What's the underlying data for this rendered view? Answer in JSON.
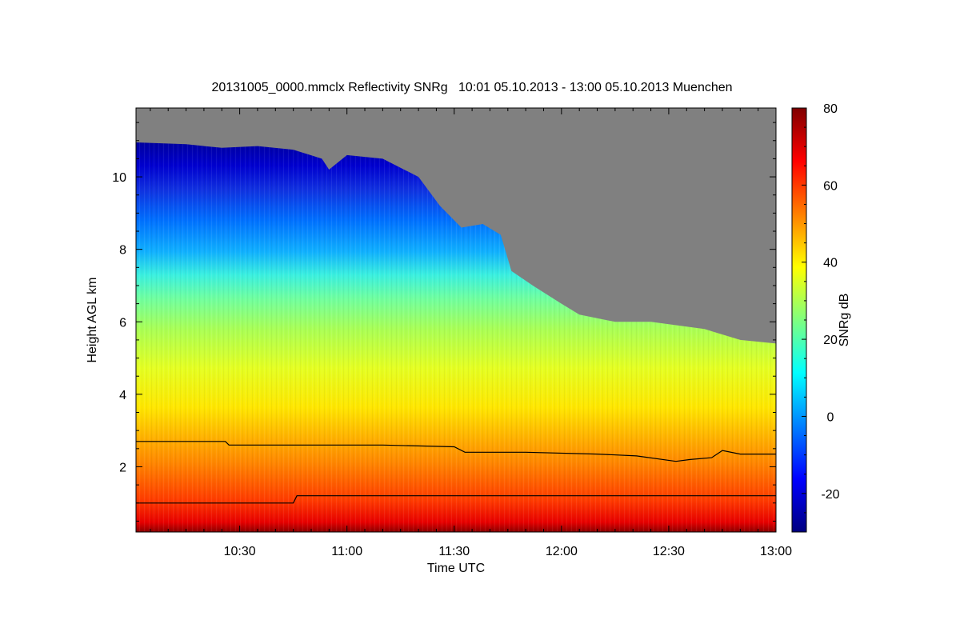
{
  "chart_data": {
    "type": "heatmap",
    "title": "20131005_0000.mmclx Reflectivity SNRg   10:01 05.10.2013 - 13:00 05.10.2013 Muenchen",
    "xlabel": "Time UTC",
    "ylabel": "Height AGL km",
    "colorbar_label": "SNRg dB",
    "x_range": [
      "10:01",
      "13:00"
    ],
    "x_range_minutes": [
      601,
      780
    ],
    "x_ticks": [
      {
        "label": "10:30",
        "minutes": 630
      },
      {
        "label": "11:00",
        "minutes": 660
      },
      {
        "label": "11:30",
        "minutes": 690
      },
      {
        "label": "12:00",
        "minutes": 720
      },
      {
        "label": "12:30",
        "minutes": 750
      },
      {
        "label": "13:00",
        "minutes": 780
      }
    ],
    "y_range": [
      0.2,
      11.9
    ],
    "y_ticks": [
      2,
      4,
      6,
      8,
      10
    ],
    "colorbar_range": [
      -30,
      80
    ],
    "colorbar_ticks": [
      -20,
      0,
      20,
      40,
      60,
      80
    ],
    "colormap": [
      "#00007f",
      "#0000ff",
      "#007fff",
      "#00ffff",
      "#7fff7f",
      "#ffff00",
      "#ff7f00",
      "#ff0000",
      "#7f0000"
    ],
    "no_signal_color": "#808080",
    "echo_top_km": [
      {
        "t": 601,
        "h": 10.95
      },
      {
        "t": 615,
        "h": 10.9
      },
      {
        "t": 625,
        "h": 10.8
      },
      {
        "t": 635,
        "h": 10.85
      },
      {
        "t": 645,
        "h": 10.75
      },
      {
        "t": 653,
        "h": 10.5
      },
      {
        "t": 655,
        "h": 10.2
      },
      {
        "t": 660,
        "h": 10.6
      },
      {
        "t": 670,
        "h": 10.5
      },
      {
        "t": 680,
        "h": 10.0
      },
      {
        "t": 686,
        "h": 9.2
      },
      {
        "t": 692,
        "h": 8.6
      },
      {
        "t": 698,
        "h": 8.7
      },
      {
        "t": 703,
        "h": 8.4
      },
      {
        "t": 706,
        "h": 7.4
      },
      {
        "t": 712,
        "h": 7.0
      },
      {
        "t": 720,
        "h": 6.5
      },
      {
        "t": 725,
        "h": 6.2
      },
      {
        "t": 735,
        "h": 6.0
      },
      {
        "t": 745,
        "h": 6.0
      },
      {
        "t": 760,
        "h": 5.8
      },
      {
        "t": 770,
        "h": 5.5
      },
      {
        "t": 780,
        "h": 5.4
      }
    ],
    "series": [
      {
        "values": [
          {
            "t": 601,
            "h": 2.7
          },
          {
            "t": 626,
            "h": 2.7
          },
          {
            "t": 627,
            "h": 2.6
          },
          {
            "t": 650,
            "h": 2.6
          },
          {
            "t": 670,
            "h": 2.6
          },
          {
            "t": 690,
            "h": 2.55
          },
          {
            "t": 693,
            "h": 2.4
          },
          {
            "t": 710,
            "h": 2.4
          },
          {
            "t": 730,
            "h": 2.35
          },
          {
            "t": 741,
            "h": 2.3
          },
          {
            "t": 752,
            "h": 2.15
          },
          {
            "t": 756,
            "h": 2.2
          },
          {
            "t": 762,
            "h": 2.25
          },
          {
            "t": 765,
            "h": 2.45
          },
          {
            "t": 770,
            "h": 2.35
          },
          {
            "t": 780,
            "h": 2.35
          }
        ]
      },
      {
        "values": [
          {
            "t": 601,
            "h": 1.0
          },
          {
            "t": 645,
            "h": 1.0
          },
          {
            "t": 646,
            "h": 1.2
          },
          {
            "t": 780,
            "h": 1.2
          }
        ]
      }
    ]
  }
}
